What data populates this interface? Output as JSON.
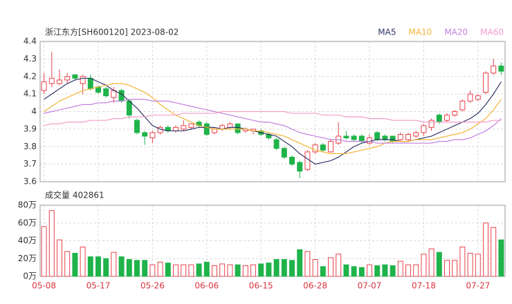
{
  "chart_data": [
    {
      "type": "candlestick",
      "title": "浙江东方[SH600120] 2023-08-02",
      "ylim": [
        3.6,
        4.4
      ],
      "yticks": [
        3.6,
        3.7,
        3.8,
        3.9,
        4,
        4.1,
        4.2,
        4.3,
        4.4
      ],
      "grid": true,
      "legend": "top-right",
      "up_color": "#e8414a",
      "down_color": "#1fb34a",
      "open": [
        4.12,
        4.16,
        4.16,
        4.18,
        4.21,
        4.16,
        4.19,
        4.14,
        4.13,
        4.08,
        4.12,
        4.06,
        3.95,
        3.88,
        3.85,
        3.88,
        3.91,
        3.89,
        3.9,
        3.91,
        3.94,
        3.93,
        3.88,
        3.9,
        3.91,
        3.93,
        3.89,
        3.89,
        3.89,
        3.87,
        3.84,
        3.79,
        3.74,
        3.71,
        3.67,
        3.77,
        3.81,
        3.77,
        3.82,
        3.86,
        3.86,
        3.86,
        3.82,
        3.88,
        3.86,
        3.86,
        3.84,
        3.84,
        3.86,
        3.88,
        3.91,
        3.98,
        3.95,
        3.98,
        4.01,
        4.06,
        4.07,
        4.11,
        4.22,
        4.26
      ],
      "high": [
        4.22,
        4.34,
        4.24,
        4.22,
        4.21,
        4.21,
        4.21,
        4.15,
        4.14,
        4.14,
        4.13,
        4.07,
        3.96,
        3.89,
        3.89,
        3.92,
        3.92,
        3.92,
        3.95,
        3.93,
        3.95,
        3.94,
        3.91,
        3.93,
        3.94,
        3.93,
        3.91,
        3.9,
        3.9,
        3.88,
        3.85,
        3.8,
        3.75,
        3.72,
        3.78,
        3.82,
        3.82,
        3.84,
        3.94,
        3.89,
        3.87,
        3.87,
        3.87,
        3.89,
        3.87,
        3.86,
        3.88,
        3.88,
        3.89,
        3.93,
        3.96,
        3.99,
        3.99,
        4.01,
        4.07,
        4.12,
        4.1,
        4.23,
        4.3,
        4.28
      ],
      "low": [
        4.1,
        4.14,
        4.15,
        4.16,
        4.18,
        4.1,
        4.12,
        4.1,
        4.08,
        4.05,
        4.05,
        3.96,
        3.87,
        3.81,
        3.82,
        3.87,
        3.88,
        3.88,
        3.89,
        3.9,
        3.91,
        3.86,
        3.87,
        3.89,
        3.9,
        3.87,
        3.88,
        3.87,
        3.86,
        3.84,
        3.78,
        3.73,
        3.69,
        3.62,
        3.66,
        3.76,
        3.77,
        3.77,
        3.81,
        3.84,
        3.83,
        3.82,
        3.81,
        3.83,
        3.83,
        3.82,
        3.83,
        3.83,
        3.85,
        3.86,
        3.89,
        3.93,
        3.94,
        3.97,
        4.0,
        4.05,
        4.06,
        4.1,
        4.21,
        4.21
      ],
      "close": [
        4.17,
        4.19,
        4.18,
        4.2,
        4.19,
        4.2,
        4.13,
        4.11,
        4.09,
        4.12,
        4.06,
        3.98,
        3.88,
        3.86,
        3.88,
        3.91,
        3.89,
        3.91,
        3.92,
        3.93,
        3.92,
        3.87,
        3.9,
        3.92,
        3.93,
        3.88,
        3.9,
        3.9,
        3.87,
        3.85,
        3.79,
        3.74,
        3.7,
        3.66,
        3.77,
        3.81,
        3.78,
        3.83,
        3.86,
        3.85,
        3.84,
        3.83,
        3.85,
        3.84,
        3.84,
        3.83,
        3.87,
        3.87,
        3.88,
        3.92,
        3.95,
        3.94,
        3.98,
        4.0,
        4.06,
        4.1,
        4.09,
        4.22,
        4.26,
        4.23
      ],
      "series": [
        {
          "name": "MA5",
          "color": "#2f3566",
          "values": [
            4.07,
            4.1,
            4.13,
            4.16,
            4.18,
            4.19,
            4.19,
            4.17,
            4.15,
            4.12,
            4.1,
            4.06,
            4.02,
            3.97,
            3.92,
            3.9,
            3.89,
            3.89,
            3.89,
            3.9,
            3.91,
            3.91,
            3.91,
            3.9,
            3.91,
            3.91,
            3.9,
            3.89,
            3.88,
            3.87,
            3.86,
            3.83,
            3.8,
            3.76,
            3.73,
            3.7,
            3.71,
            3.72,
            3.74,
            3.77,
            3.8,
            3.82,
            3.83,
            3.84,
            3.84,
            3.84,
            3.83,
            3.83,
            3.84,
            3.85,
            3.86,
            3.88,
            3.9,
            3.92,
            3.94,
            3.96,
            3.99,
            4.04,
            4.1,
            4.17
          ]
        },
        {
          "name": "MA10",
          "color": "#f5b335",
          "values": [
            4.0,
            4.03,
            4.06,
            4.08,
            4.1,
            4.12,
            4.13,
            4.14,
            4.15,
            4.16,
            4.16,
            4.15,
            4.13,
            4.11,
            4.08,
            4.04,
            4.01,
            3.98,
            3.96,
            3.94,
            3.92,
            3.91,
            3.9,
            3.9,
            3.9,
            3.9,
            3.9,
            3.89,
            3.89,
            3.88,
            3.87,
            3.86,
            3.84,
            3.82,
            3.8,
            3.78,
            3.77,
            3.76,
            3.76,
            3.76,
            3.77,
            3.78,
            3.79,
            3.8,
            3.82,
            3.83,
            3.83,
            3.83,
            3.84,
            3.84,
            3.84,
            3.85,
            3.86,
            3.87,
            3.88,
            3.9,
            3.93,
            3.96,
            4.01,
            4.07
          ]
        },
        {
          "name": "MA20",
          "color": "#c27ee0",
          "values": [
            3.99,
            4.0,
            4.01,
            4.02,
            4.03,
            4.04,
            4.04,
            4.05,
            4.05,
            4.06,
            4.06,
            4.07,
            4.07,
            4.07,
            4.06,
            4.06,
            4.06,
            4.05,
            4.04,
            4.03,
            4.02,
            4.01,
            4.0,
            3.99,
            3.98,
            3.97,
            3.96,
            3.95,
            3.94,
            3.94,
            3.93,
            3.92,
            3.9,
            3.88,
            3.87,
            3.86,
            3.85,
            3.84,
            3.84,
            3.83,
            3.83,
            3.83,
            3.83,
            3.82,
            3.82,
            3.82,
            3.82,
            3.82,
            3.82,
            3.82,
            3.82,
            3.83,
            3.83,
            3.84,
            3.84,
            3.85,
            3.87,
            3.89,
            3.92,
            3.96
          ]
        },
        {
          "name": "MA60",
          "color": "#f29cc8",
          "values": [
            3.92,
            3.93,
            3.93,
            3.94,
            3.94,
            3.94,
            3.95,
            3.95,
            3.95,
            3.96,
            3.96,
            3.97,
            3.97,
            3.97,
            3.98,
            3.98,
            3.98,
            3.98,
            3.99,
            3.99,
            3.99,
            3.99,
            3.99,
            4.0,
            4.0,
            4.0,
            4.0,
            4.0,
            4.0,
            4.0,
            4.0,
            4.0,
            3.99,
            3.99,
            3.99,
            3.99,
            3.98,
            3.98,
            3.98,
            3.97,
            3.97,
            3.97,
            3.96,
            3.96,
            3.96,
            3.95,
            3.95,
            3.95,
            3.95,
            3.94,
            3.94,
            3.94,
            3.94,
            3.94,
            3.94,
            3.94,
            3.94,
            3.94,
            3.95,
            3.95
          ]
        }
      ]
    },
    {
      "type": "bar",
      "title": "成交量 402861",
      "categories": [
        "05-08",
        null,
        null,
        null,
        null,
        null,
        null,
        "05-17",
        null,
        null,
        null,
        null,
        null,
        null,
        "05-26",
        null,
        null,
        null,
        null,
        null,
        null,
        "06-06",
        null,
        null,
        null,
        null,
        null,
        null,
        "06-15",
        null,
        null,
        null,
        null,
        null,
        null,
        "06-28",
        null,
        null,
        null,
        null,
        null,
        null,
        "07-07",
        null,
        null,
        null,
        null,
        null,
        null,
        "07-18",
        null,
        null,
        null,
        null,
        null,
        null,
        "07-27",
        null,
        null,
        null
      ],
      "ylim": [
        0,
        80
      ],
      "yticks": [
        {
          "value": 0,
          "label": "0万"
        },
        {
          "value": 20,
          "label": "20万"
        },
        {
          "value": 40,
          "label": "40万"
        },
        {
          "value": 60,
          "label": "60万"
        },
        {
          "value": 80,
          "label": "80万"
        }
      ],
      "values": [
        56,
        74,
        41,
        28,
        26,
        33,
        22,
        22,
        20,
        27,
        22,
        19,
        18,
        18,
        13,
        16,
        15,
        13,
        13,
        13,
        14,
        16,
        12,
        14,
        13,
        13,
        12,
        13,
        14,
        15,
        19,
        19,
        18,
        30,
        28,
        19,
        11,
        21,
        25,
        13,
        11,
        10,
        13,
        12,
        13,
        12,
        17,
        13,
        13,
        25,
        31,
        27,
        18,
        18,
        33,
        26,
        25,
        60,
        55,
        41
      ]
    }
  ]
}
